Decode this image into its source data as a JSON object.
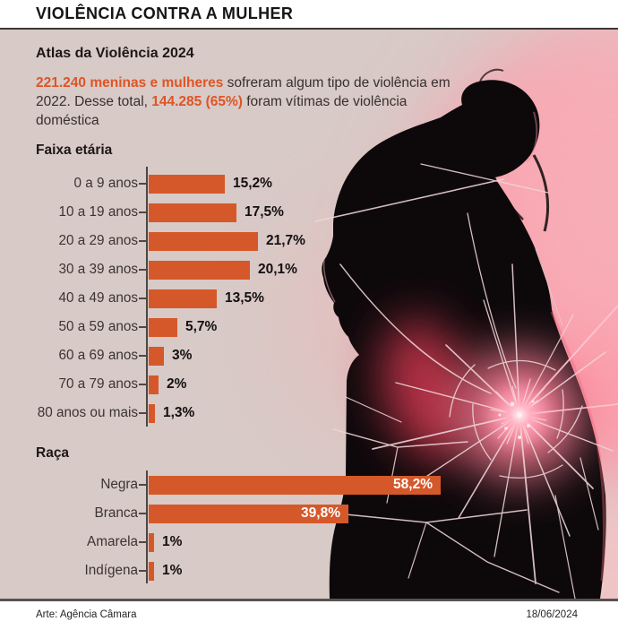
{
  "header": {
    "title": "VIOLÊNCIA CONTRA A MULHER"
  },
  "intro": {
    "heading": "Atlas da Violência 2024",
    "p1_highlight": "221.240 meninas e mulheres",
    "p1_rest": " sofreram algum tipo de violência em 2022. Desse total, ",
    "p2_highlight": "144.285 (65%)",
    "p2_rest": " foram vítimas de violência doméstica"
  },
  "chart_data": [
    {
      "type": "bar",
      "orientation": "horizontal",
      "title": "Faixa etária",
      "categories": [
        "0 a 9 anos",
        "10 a 19 anos",
        "20 a 29 anos",
        "30 a 39 anos",
        "40 a 49 anos",
        "50 a 59 anos",
        "60 a 69 anos",
        "70 a 79 anos",
        "80 anos ou mais"
      ],
      "values": [
        15.2,
        17.5,
        21.7,
        20.1,
        13.5,
        5.7,
        3,
        2,
        1.3
      ],
      "value_labels": [
        "15,2%",
        "17,5%",
        "21,7%",
        "20,1%",
        "13,5%",
        "5,7%",
        "3%",
        "2%",
        "1,3%"
      ],
      "unit": "%",
      "bar_color": "#D5582A",
      "legend": "none",
      "grid": false
    },
    {
      "type": "bar",
      "orientation": "horizontal",
      "title": "Raça",
      "categories": [
        "Negra",
        "Branca",
        "Amarela",
        "Indígena"
      ],
      "values": [
        58.2,
        39.8,
        1,
        1
      ],
      "value_labels": [
        "58,2%",
        "39,8%",
        "1%",
        "1%"
      ],
      "unit": "%",
      "bar_color": "#D5582A",
      "legend": "none",
      "grid": false
    }
  ],
  "footer": {
    "credit": "Arte: Agência Câmara",
    "date": "18/06/2024"
  },
  "colors": {
    "accent_text": "#DD5526",
    "bar": "#D5582A",
    "panel_background": "#D8CAC7",
    "pink_glow": "#FB9DAB",
    "silhouette": "#0D090B"
  }
}
